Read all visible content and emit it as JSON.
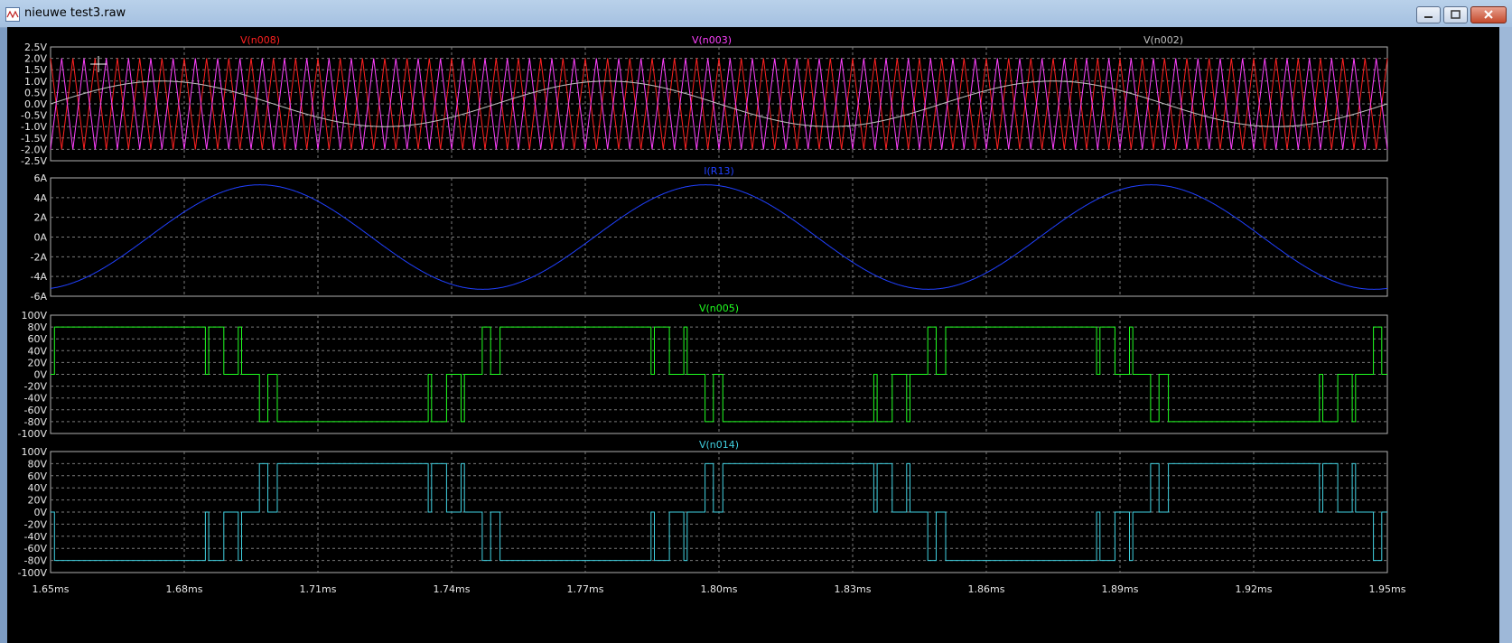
{
  "window": {
    "title": "nieuwe test3.raw"
  },
  "x_axis": {
    "ticks": [
      "1.65ms",
      "1.68ms",
      "1.71ms",
      "1.74ms",
      "1.77ms",
      "1.80ms",
      "1.83ms",
      "1.86ms",
      "1.89ms",
      "1.92ms",
      "1.95ms"
    ],
    "range_ms": [
      1.65,
      1.95
    ]
  },
  "panes": [
    {
      "ticks": [
        "2.5V",
        "2.0V",
        "1.5V",
        "1.0V",
        "0.5V",
        "0.0V",
        "-0.5V",
        "-1.0V",
        "-1.5V",
        "-2.0V",
        "-2.5V"
      ],
      "ylim": [
        -2.5,
        2.5
      ],
      "traces": [
        {
          "name": "V(n008)",
          "color": "#ff2020",
          "kind": "triangle",
          "amp": 2.0,
          "freq_khz": 200,
          "phase": 0
        },
        {
          "name": "V(n003)",
          "color": "#ff40ff",
          "kind": "triangle",
          "amp": 2.0,
          "freq_khz": 200,
          "phase": 0.5
        },
        {
          "name": "V(n002)",
          "color": "#c0c0c0",
          "kind": "sine",
          "amp": 1.0,
          "freq_khz": 10,
          "zero_ms": 1.65
        }
      ]
    },
    {
      "ticks": [
        "6A",
        "4A",
        "2A",
        "0A",
        "-2A",
        "-4A",
        "-6A"
      ],
      "ylim": [
        -6,
        6
      ],
      "traces": [
        {
          "name": "I(R13)",
          "color": "#2040ff",
          "kind": "sine",
          "amp": 5.3,
          "freq_khz": 10,
          "zero_ms": 1.672
        }
      ]
    },
    {
      "ticks": [
        "100V",
        "80V",
        "60V",
        "40V",
        "20V",
        "0V",
        "-20V",
        "-40V",
        "-60V",
        "-80V",
        "-100V"
      ],
      "ylim": [
        -100,
        100
      ],
      "traces": [
        {
          "name": "V(n005)",
          "color": "#20ff20",
          "kind": "pwm",
          "amp": 80,
          "freq_khz": 200,
          "zero_ms": 1.644
        }
      ]
    },
    {
      "ticks": [
        "100V",
        "80V",
        "60V",
        "40V",
        "20V",
        "0V",
        "-20V",
        "-40V",
        "-60V",
        "-80V",
        "-100V"
      ],
      "ylim": [
        -100,
        100
      ],
      "traces": [
        {
          "name": "V(n014)",
          "color": "#40d0e0",
          "kind": "pwm",
          "amp": -80,
          "freq_khz": 200,
          "zero_ms": 1.644
        }
      ]
    }
  ]
}
